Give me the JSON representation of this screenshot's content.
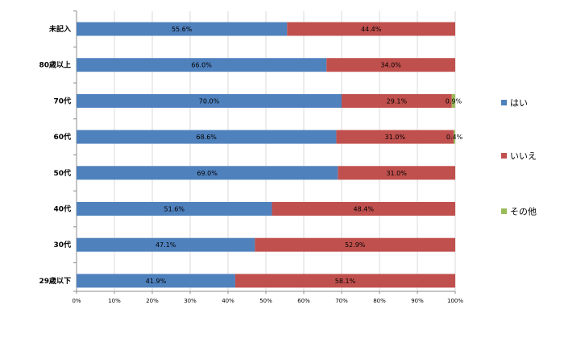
{
  "chart_data": {
    "type": "bar",
    "orientation": "horizontal",
    "stacked": "100%",
    "categories": [
      "未記入",
      "80歳以上",
      "70代",
      "60代",
      "50代",
      "40代",
      "30代",
      "29歳以下"
    ],
    "series": [
      {
        "name": "はい",
        "color": "#4F81BD",
        "values": [
          55.6,
          66.0,
          70.0,
          68.6,
          69.0,
          51.6,
          47.1,
          41.9
        ],
        "labels": [
          "55.6%",
          "66.0%",
          "70.0%",
          "68.6%",
          "69.0%",
          "51.6%",
          "47.1%",
          "41.9%"
        ]
      },
      {
        "name": "いいえ",
        "color": "#C0504D",
        "values": [
          44.4,
          34.0,
          29.1,
          31.0,
          31.0,
          48.4,
          52.9,
          58.1
        ],
        "labels": [
          "44.4%",
          "34.0%",
          "29.1%",
          "31.0%",
          "31.0%",
          "48.4%",
          "52.9%",
          "58.1%"
        ]
      },
      {
        "name": "その他",
        "color": "#9BBB59",
        "values": [
          0,
          0,
          0.9,
          0.4,
          0,
          0,
          0,
          0
        ],
        "labels": [
          "",
          "",
          "0.9%",
          "0.4%",
          "",
          "",
          "",
          ""
        ]
      }
    ],
    "x_ticks": [
      "0%",
      "10%",
      "20%",
      "30%",
      "40%",
      "50%",
      "60%",
      "70%",
      "80%",
      "90%",
      "100%"
    ],
    "xlim": [
      0,
      100
    ],
    "grid": true,
    "legend": "right"
  }
}
